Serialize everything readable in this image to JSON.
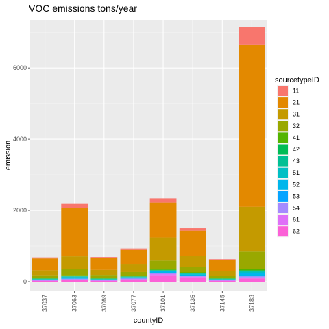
{
  "chart_data": {
    "type": "bar",
    "stacked": true,
    "title": "VOC emissions tons/year",
    "xlabel": "countyID",
    "ylabel": "emission",
    "categories": [
      "37037",
      "37063",
      "37069",
      "37077",
      "37101",
      "37135",
      "37145",
      "37183"
    ],
    "ylim": [
      -250,
      7350
    ],
    "yticks": [
      0,
      2000,
      4000,
      6000
    ],
    "grid": true,
    "legend": {
      "title": "sourcetypeID",
      "position": "right"
    },
    "series": [
      {
        "name": "11",
        "color": "#F8766D",
        "values": [
          30,
          130,
          30,
          40,
          120,
          70,
          30,
          490
        ]
      },
      {
        "name": "21",
        "color": "#E38900",
        "values": [
          330,
          1360,
          330,
          390,
          980,
          710,
          310,
          4560
        ]
      },
      {
        "name": "31",
        "color": "#C49A00",
        "values": [
          140,
          350,
          140,
          230,
          650,
          300,
          130,
          1240
        ]
      },
      {
        "name": "32",
        "color": "#99A800",
        "values": [
          80,
          180,
          90,
          110,
          240,
          160,
          60,
          500
        ]
      },
      {
        "name": "41",
        "color": "#53B400",
        "values": [
          10,
          20,
          10,
          10,
          20,
          20,
          10,
          40
        ]
      },
      {
        "name": "42",
        "color": "#00BC56",
        "values": [
          10,
          10,
          10,
          10,
          10,
          10,
          10,
          20
        ]
      },
      {
        "name": "43",
        "color": "#00C094",
        "values": [
          10,
          10,
          10,
          10,
          10,
          10,
          10,
          20
        ]
      },
      {
        "name": "51",
        "color": "#00BFC4",
        "values": [
          10,
          20,
          10,
          10,
          20,
          20,
          10,
          40
        ]
      },
      {
        "name": "52",
        "color": "#00B6EB",
        "values": [
          10,
          30,
          10,
          20,
          40,
          30,
          10,
          80
        ]
      },
      {
        "name": "53",
        "color": "#06A4FF",
        "values": [
          10,
          10,
          10,
          10,
          10,
          10,
          10,
          10
        ]
      },
      {
        "name": "54",
        "color": "#A58AFF",
        "values": [
          10,
          20,
          10,
          20,
          30,
          20,
          10,
          30
        ]
      },
      {
        "name": "61",
        "color": "#DF70F8",
        "values": [
          10,
          20,
          10,
          20,
          30,
          20,
          10,
          30
        ]
      },
      {
        "name": "62",
        "color": "#FB61D7",
        "values": [
          20,
          40,
          20,
          50,
          180,
          120,
          20,
          90
        ]
      }
    ]
  }
}
